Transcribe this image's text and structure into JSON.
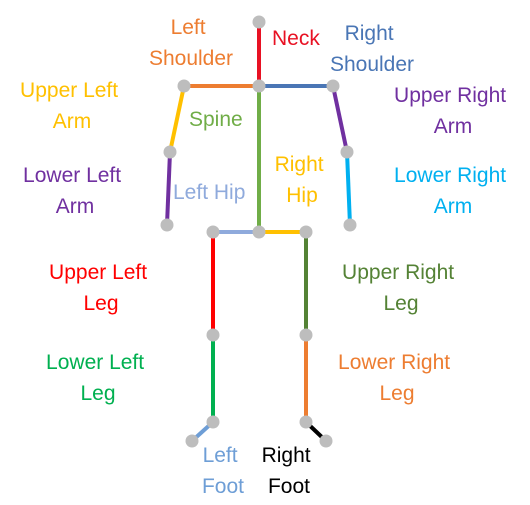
{
  "colors": {
    "joint": "#bdbdbd",
    "neck": "#e81123",
    "left_shoulder": "#ed7d31",
    "right_shoulder": "#4a76b5",
    "spine": "#70ad47",
    "upper_left_arm": "#ffc000",
    "lower_left_arm": "#7030a0",
    "upper_right_arm": "#7030a0",
    "lower_right_arm": "#00b0f0",
    "left_hip": "#8faadc",
    "right_hip": "#ffc000",
    "upper_left_leg": "#ff0000",
    "lower_left_leg": "#00b050",
    "upper_right_leg": "#548235",
    "lower_right_leg": "#ed7d31",
    "left_foot": "#6e9ed6",
    "right_foot": "#000000"
  },
  "labels": {
    "neck": "Neck",
    "left_shoulder": [
      "Left",
      "Shoulder"
    ],
    "right_shoulder": [
      "Right",
      "Shoulder"
    ],
    "spine": "Spine",
    "upper_left_arm": [
      "Upper Left",
      "Arm"
    ],
    "lower_left_arm": [
      "Lower Left",
      "Arm"
    ],
    "upper_right_arm": [
      "Upper Right",
      "Arm"
    ],
    "lower_right_arm": [
      "Lower Right",
      "Arm"
    ],
    "left_hip": "Left Hip",
    "right_hip": [
      "Right",
      "Hip"
    ],
    "upper_left_leg": [
      "Upper Left",
      "Leg"
    ],
    "lower_left_leg": [
      "Lower Left",
      "Leg"
    ],
    "upper_right_leg": [
      "Upper Right",
      "Leg"
    ],
    "lower_right_leg": [
      "Lower Right",
      "Leg"
    ],
    "left_foot": [
      "Left",
      "Foot"
    ],
    "right_foot": [
      "Right",
      "Foot"
    ]
  }
}
